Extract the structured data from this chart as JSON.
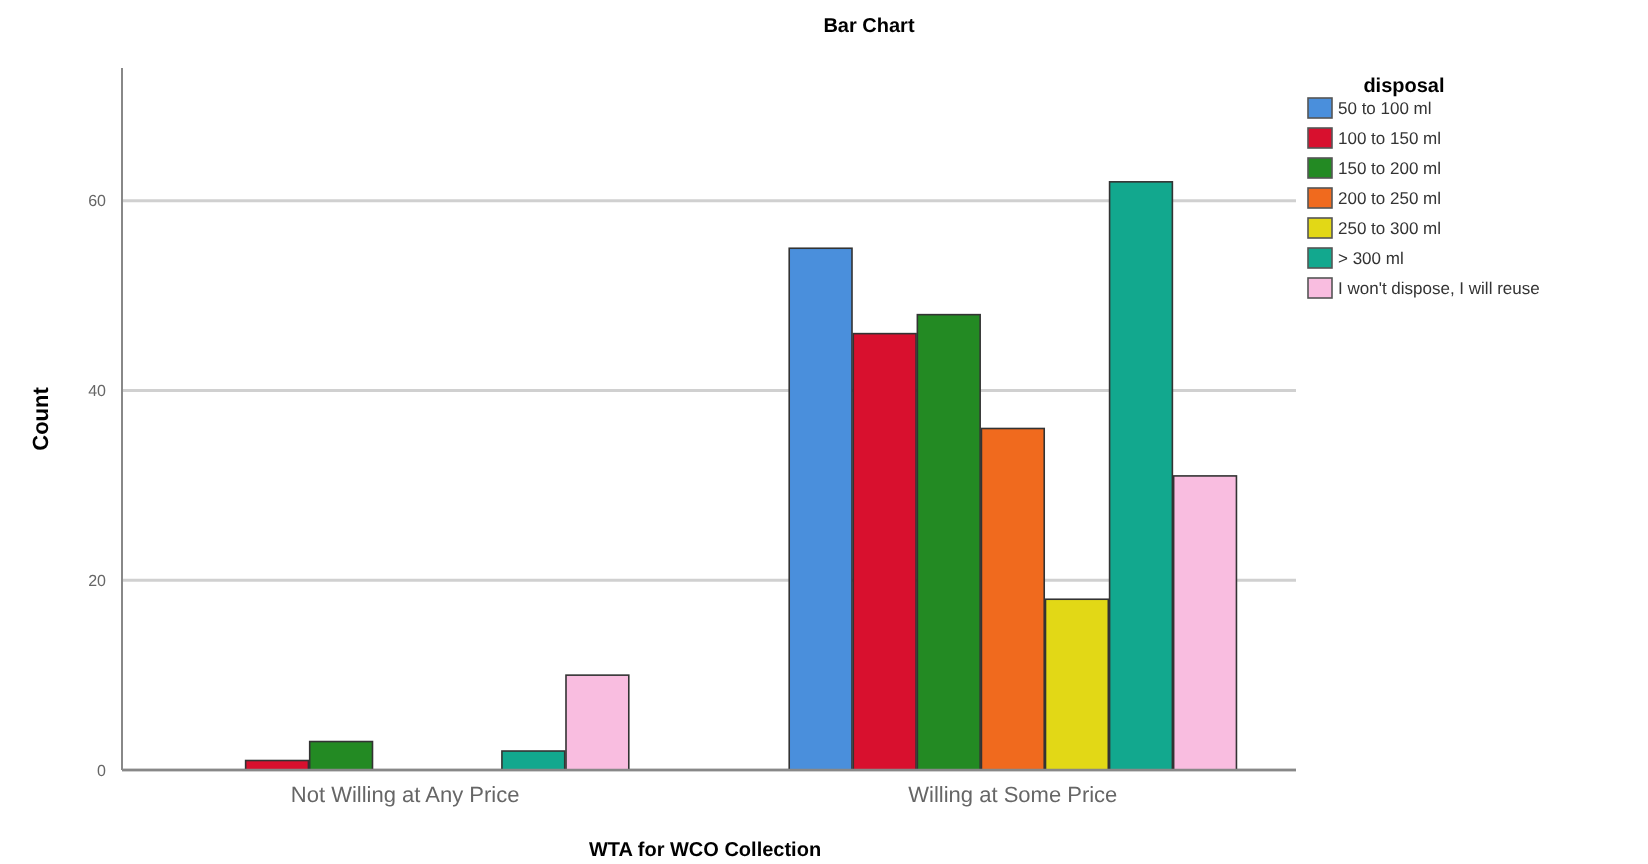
{
  "chart_data": {
    "type": "bar",
    "title": "Bar Chart",
    "xlabel": "WTA for WCO Collection",
    "ylabel": "Count",
    "legend_title": "disposal",
    "categories": [
      "Not Willing at Any Price",
      "Willing at Some Price"
    ],
    "series": [
      {
        "name": "50 to 100 ml",
        "color": "#4a8fdc",
        "values": [
          0,
          55
        ]
      },
      {
        "name": "100 to 150 ml",
        "color": "#d8102e",
        "values": [
          1,
          46
        ]
      },
      {
        "name": "150 to 200 ml",
        "color": "#238a23",
        "values": [
          3,
          48
        ]
      },
      {
        "name": "200 to 250 ml",
        "color": "#f06a1e",
        "values": [
          0,
          36
        ]
      },
      {
        "name": "250 to 300 ml",
        "color": "#e2d816",
        "values": [
          0,
          18
        ]
      },
      {
        "name": "> 300 ml",
        "color": "#12a88e",
        "values": [
          2,
          62
        ]
      },
      {
        "name": "I won't dispose, I will reuse",
        "color": "#f9bde0",
        "values": [
          10,
          31
        ]
      }
    ],
    "ylim": [
      0,
      74
    ],
    "yticks": [
      0,
      20,
      40,
      60
    ],
    "grid": "y",
    "legend": "top right"
  }
}
